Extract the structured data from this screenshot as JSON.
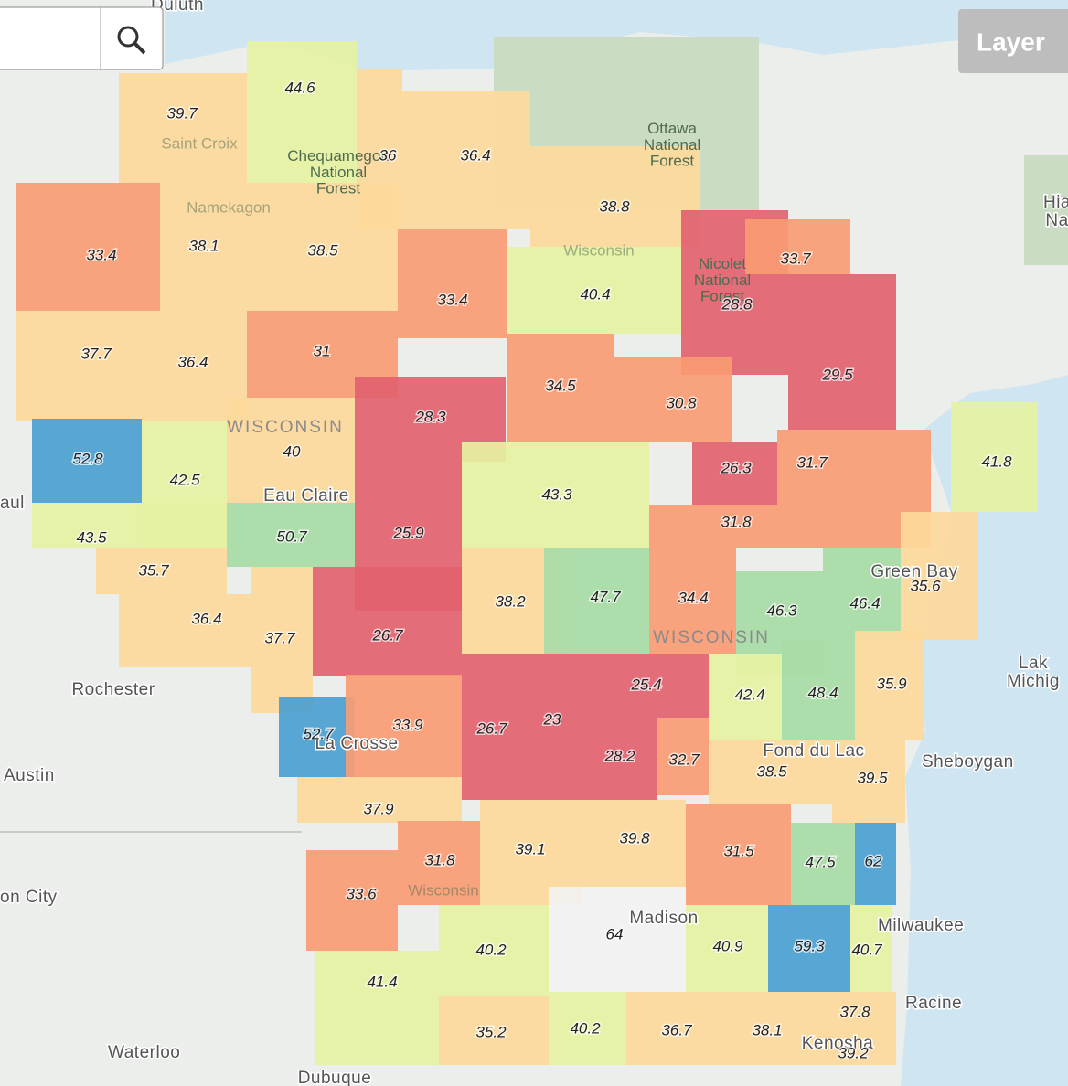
{
  "search": {
    "placeholder": ""
  },
  "layer_button": "Layer",
  "places": [
    "Duluth",
    "Ottawa National Forest",
    "Chequamegon National Forest",
    "Nicolet National Forest",
    "WISCONSIN",
    "WISCONSIN",
    "Eau Claire",
    "Green Bay",
    "Rochester",
    "Austin",
    "La Crosse",
    "Fond du Lac",
    "Sheboygan",
    "Madison",
    "Milwaukee",
    "Racine",
    "Kenosha",
    "Waterloo",
    "Dubuque",
    "on City",
    "aul",
    "Lak Michig",
    "Hia Na",
    "Saint Croix",
    "Namekagon",
    "Wisconsin",
    "Wisconsin"
  ],
  "counties": [
    39.7,
    44.6,
    36,
    36.4,
    38.8,
    33.4,
    38.1,
    38.5,
    33.4,
    40.4,
    28.8,
    33.7,
    29.5,
    37.7,
    36.4,
    31,
    34.5,
    30.8,
    28.3,
    52.8,
    42.5,
    40,
    43.3,
    26.3,
    31.7,
    31.8,
    25.9,
    50.7,
    43.5,
    35.7,
    41.8,
    38.2,
    47.7,
    34.4,
    46.3,
    46.4,
    35.6,
    36.4,
    37.7,
    26.7,
    25.4,
    42.4,
    48.4,
    35.9,
    52.7,
    33.9,
    26.7,
    23,
    28.2,
    32.7,
    38.5,
    39.5,
    37.9,
    31.8,
    33.6,
    39.1,
    39.8,
    31.5,
    47.5,
    62,
    40.2,
    64,
    40.9,
    59.3,
    40.7,
    41.4,
    35.2,
    40.2,
    36.7,
    38.1,
    37.8,
    39.2
  ]
}
